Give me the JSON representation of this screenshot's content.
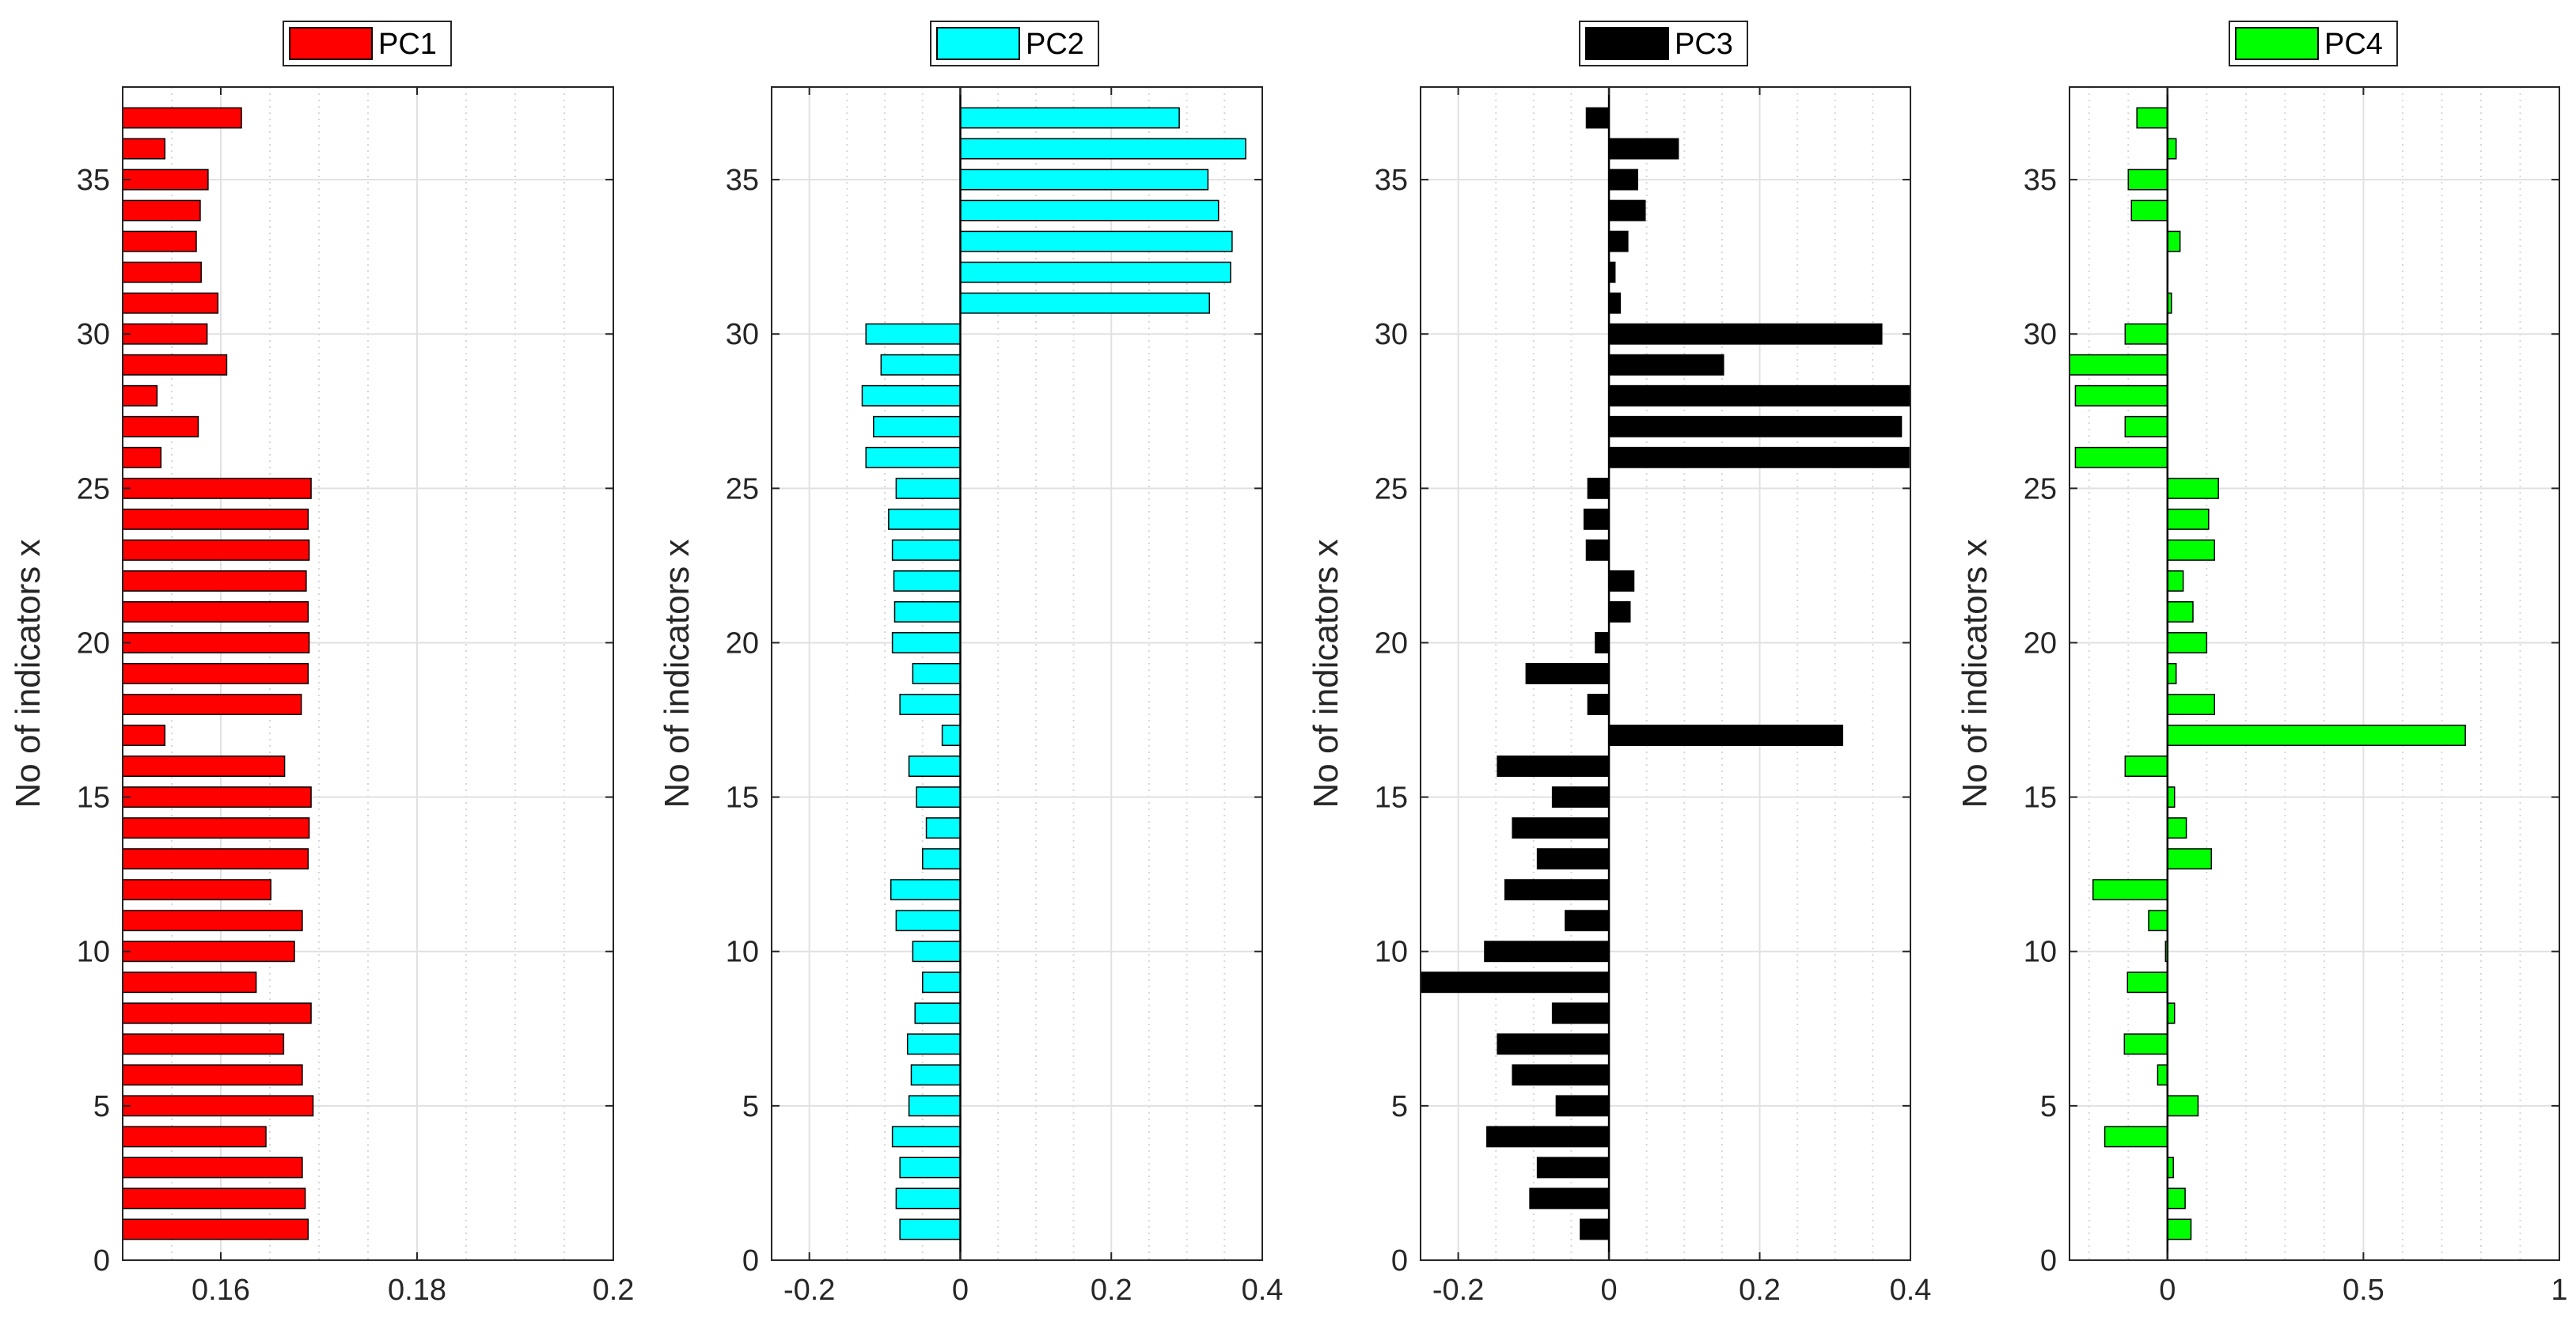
{
  "chart_data": [
    {
      "type": "bar",
      "orientation": "horizontal",
      "legend": "PC1",
      "color": "#ff0000",
      "ylabel": "No of indicators x",
      "xlim": [
        0.15,
        0.2
      ],
      "ylim": [
        0,
        38
      ],
      "xticks": [
        0.16,
        0.18,
        0.2
      ],
      "xtick_labels": [
        "0.16",
        "0.18",
        "0.2"
      ],
      "xminor_step": 0.005,
      "yticks": [
        0,
        5,
        10,
        15,
        20,
        25,
        30,
        35
      ],
      "ytick_labels": [
        "0",
        "5",
        "10",
        "15",
        "20",
        "25",
        "30",
        "35"
      ],
      "indicators": [
        1,
        2,
        3,
        4,
        5,
        6,
        7,
        8,
        9,
        10,
        11,
        12,
        13,
        14,
        15,
        16,
        17,
        18,
        19,
        20,
        21,
        22,
        23,
        24,
        25,
        26,
        27,
        28,
        29,
        30,
        31,
        32,
        33,
        34,
        35,
        36,
        37
      ],
      "values": [
        0.1689,
        0.1686,
        0.1683,
        0.1646,
        0.1694,
        0.1683,
        0.1664,
        0.1692,
        0.1636,
        0.1675,
        0.1683,
        0.1651,
        0.1689,
        0.169,
        0.1692,
        0.1665,
        0.1543,
        0.1682,
        0.1689,
        0.169,
        0.1689,
        0.1687,
        0.169,
        0.1689,
        0.1692,
        0.1539,
        0.1577,
        0.1535,
        0.1606,
        0.1586,
        0.1597,
        0.158,
        0.1575,
        0.1579,
        0.1587,
        0.1543,
        0.1621
      ]
    },
    {
      "type": "bar",
      "orientation": "horizontal",
      "legend": "PC2",
      "color": "#00ffff",
      "ylabel": "No of indicators x",
      "xlim": [
        -0.25,
        0.4
      ],
      "ylim": [
        0,
        38
      ],
      "xticks": [
        -0.2,
        0,
        0.2,
        0.4
      ],
      "xtick_labels": [
        "-0.2",
        "0",
        "0.2",
        "0.4"
      ],
      "xminor_step": 0.05,
      "yticks": [
        0,
        5,
        10,
        15,
        20,
        25,
        30,
        35
      ],
      "ytick_labels": [
        "0",
        "5",
        "10",
        "15",
        "20",
        "25",
        "30",
        "35"
      ],
      "indicators": [
        1,
        2,
        3,
        4,
        5,
        6,
        7,
        8,
        9,
        10,
        11,
        12,
        13,
        14,
        15,
        16,
        17,
        18,
        19,
        20,
        21,
        22,
        23,
        24,
        25,
        26,
        27,
        28,
        29,
        30,
        31,
        32,
        33,
        34,
        35,
        36,
        37
      ],
      "values": [
        -0.08,
        -0.085,
        -0.08,
        -0.09,
        -0.068,
        -0.065,
        -0.07,
        -0.06,
        -0.05,
        -0.063,
        -0.085,
        -0.092,
        -0.05,
        -0.045,
        -0.058,
        -0.068,
        -0.024,
        -0.08,
        -0.063,
        -0.09,
        -0.087,
        -0.088,
        -0.09,
        -0.095,
        -0.085,
        -0.125,
        -0.115,
        -0.13,
        -0.105,
        -0.125,
        0.33,
        0.358,
        0.36,
        0.342,
        0.328,
        0.378,
        0.29
      ]
    },
    {
      "type": "bar",
      "orientation": "horizontal",
      "legend": "PC3",
      "color": "#000000",
      "ylabel": "No of indicators x",
      "xlim": [
        -0.25,
        0.4
      ],
      "ylim": [
        0,
        38
      ],
      "xticks": [
        -0.2,
        0,
        0.2,
        0.4
      ],
      "xtick_labels": [
        "-0.2",
        "0",
        "0.2",
        "0.4"
      ],
      "xminor_step": 0.05,
      "yticks": [
        0,
        5,
        10,
        15,
        20,
        25,
        30,
        35
      ],
      "ytick_labels": [
        "0",
        "5",
        "10",
        "15",
        "20",
        "25",
        "30",
        "35"
      ],
      "indicators": [
        1,
        2,
        3,
        4,
        5,
        6,
        7,
        8,
        9,
        10,
        11,
        12,
        13,
        14,
        15,
        16,
        17,
        18,
        19,
        20,
        21,
        22,
        23,
        24,
        25,
        26,
        27,
        28,
        29,
        30,
        31,
        32,
        33,
        34,
        35,
        36,
        37
      ],
      "values": [
        -0.038,
        -0.105,
        -0.095,
        -0.162,
        -0.07,
        -0.128,
        -0.148,
        -0.075,
        -0.25,
        -0.165,
        -0.058,
        -0.138,
        -0.095,
        -0.128,
        -0.075,
        -0.148,
        0.31,
        -0.028,
        -0.11,
        -0.018,
        0.028,
        0.033,
        -0.03,
        -0.033,
        -0.028,
        0.398,
        0.388,
        0.4,
        0.152,
        0.362,
        0.015,
        0.008,
        0.025,
        0.048,
        0.038,
        0.092,
        -0.03
      ]
    },
    {
      "type": "bar",
      "orientation": "horizontal",
      "legend": "PC4",
      "color": "#00ff00",
      "ylabel": "No of indicators x",
      "xlim": [
        -0.25,
        1
      ],
      "ylim": [
        0,
        38
      ],
      "xticks": [
        0,
        0.5,
        1
      ],
      "xtick_labels": [
        "0",
        "0.5",
        "1"
      ],
      "xminor_step": 0.1,
      "yticks": [
        0,
        5,
        10,
        15,
        20,
        25,
        30,
        35
      ],
      "ytick_labels": [
        "0",
        "5",
        "10",
        "15",
        "20",
        "25",
        "30",
        "35"
      ],
      "indicators": [
        1,
        2,
        3,
        4,
        5,
        6,
        7,
        8,
        9,
        10,
        11,
        12,
        13,
        14,
        15,
        16,
        17,
        18,
        19,
        20,
        21,
        22,
        23,
        24,
        25,
        26,
        27,
        28,
        29,
        30,
        31,
        32,
        33,
        34,
        35,
        36,
        37
      ],
      "values": [
        0.06,
        0.045,
        0.015,
        -0.16,
        0.078,
        -0.025,
        -0.11,
        0.018,
        -0.102,
        -0.005,
        -0.048,
        -0.19,
        0.112,
        0.048,
        0.018,
        -0.108,
        0.76,
        0.12,
        0.022,
        0.1,
        0.065,
        0.04,
        0.12,
        0.105,
        0.13,
        -0.235,
        -0.108,
        -0.235,
        -0.25,
        -0.108,
        0.01,
        0.0,
        0.032,
        -0.092,
        -0.1,
        0.022,
        -0.078
      ]
    }
  ]
}
